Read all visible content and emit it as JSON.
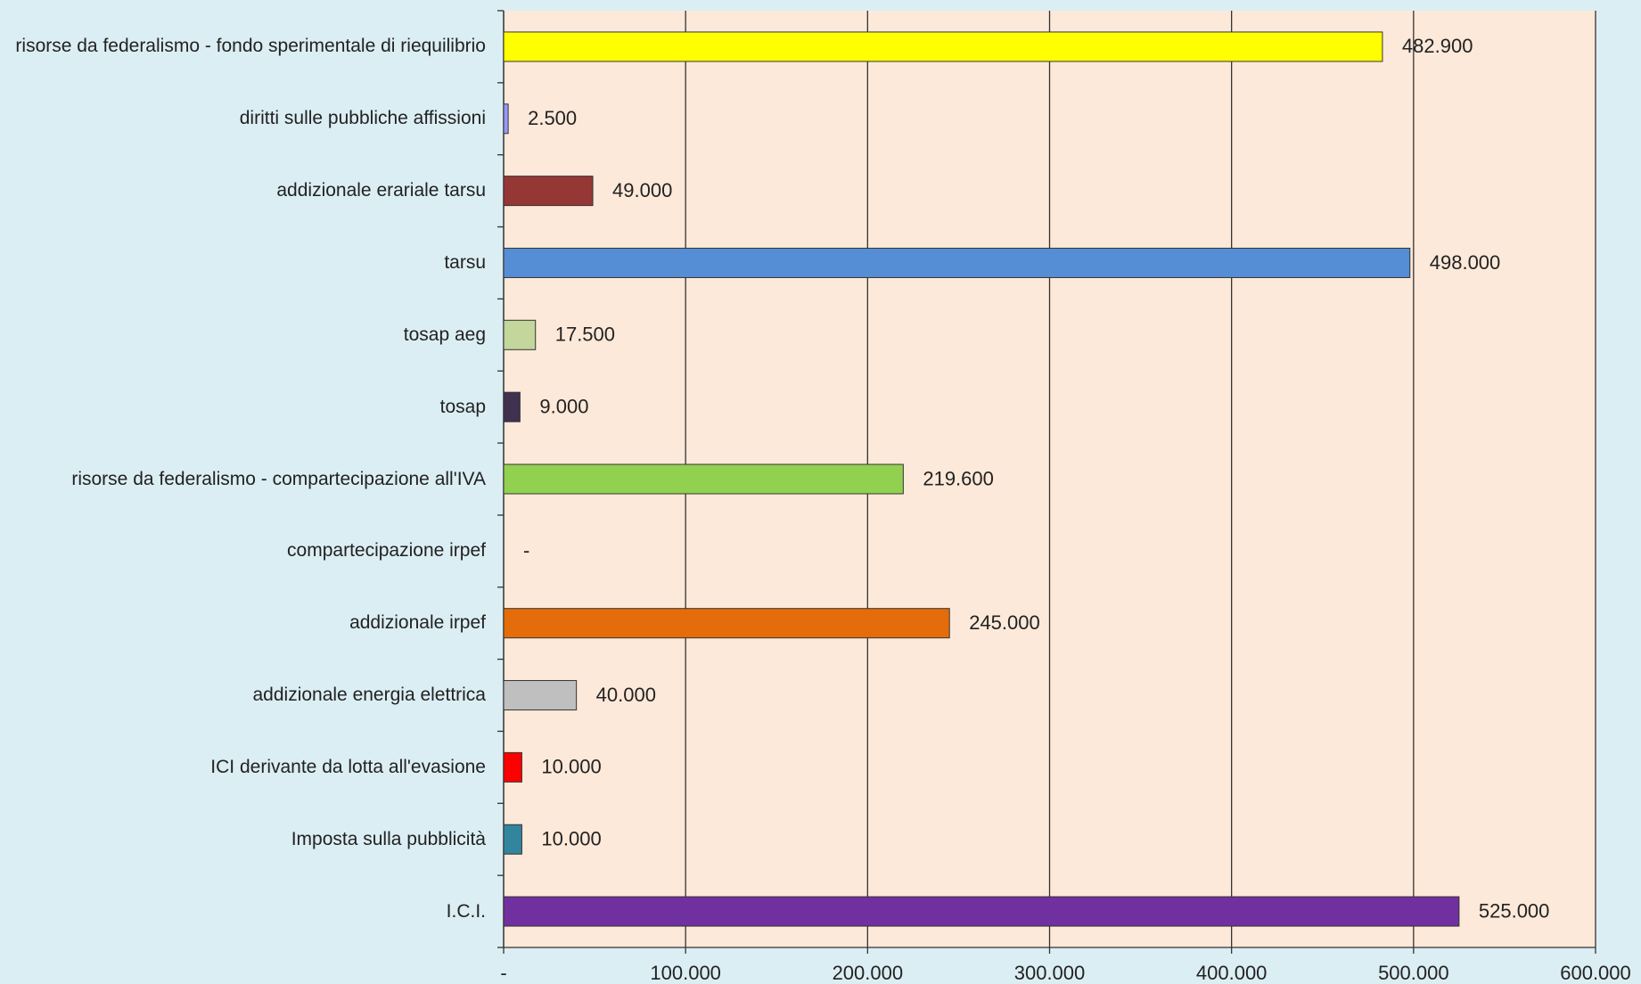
{
  "chart_data": {
    "type": "barh",
    "categories": [
      "risorse da federalismo - fondo sperimentale di riequilibrio",
      "diritti sulle pubbliche  affissioni",
      "addizionale erariale tarsu",
      "tarsu",
      "tosap aeg",
      "tosap",
      "risorse da federalismo - compartecipazione all'IVA",
      "compartecipazione irpef",
      "addizionale irpef",
      "addizionale energia elettrica",
      "ICI derivante da lotta all'evasione",
      "Imposta sulla pubblicità",
      "I.C.I."
    ],
    "values": [
      482900,
      2500,
      49000,
      498000,
      17500,
      9000,
      219600,
      0,
      245000,
      40000,
      10000,
      10000,
      525000
    ],
    "value_labels": [
      "482.900",
      "2.500",
      "49.000",
      "498.000",
      "17.500",
      "9.000",
      "219.600",
      "-",
      "245.000",
      "40.000",
      "10.000",
      "10.000",
      "525.000"
    ],
    "colors": [
      "#ffff00",
      "#9999ff",
      "#953735",
      "#558ed5",
      "#c3d69b",
      "#403151",
      "#92d050",
      "#ffffff",
      "#e46c0a",
      "#bfbfbf",
      "#ff0000",
      "#31859c",
      "#7030a0"
    ],
    "xlim": [
      0,
      600000
    ],
    "xticks": [
      {
        "value": 0,
        "label": "-"
      },
      {
        "value": 100000,
        "label": "100.000"
      },
      {
        "value": 200000,
        "label": "200.000"
      },
      {
        "value": 300000,
        "label": "300.000"
      },
      {
        "value": 400000,
        "label": "400.000"
      },
      {
        "value": 500000,
        "label": "500.000"
      },
      {
        "value": 600000,
        "label": "600.000"
      }
    ],
    "grid": true
  }
}
